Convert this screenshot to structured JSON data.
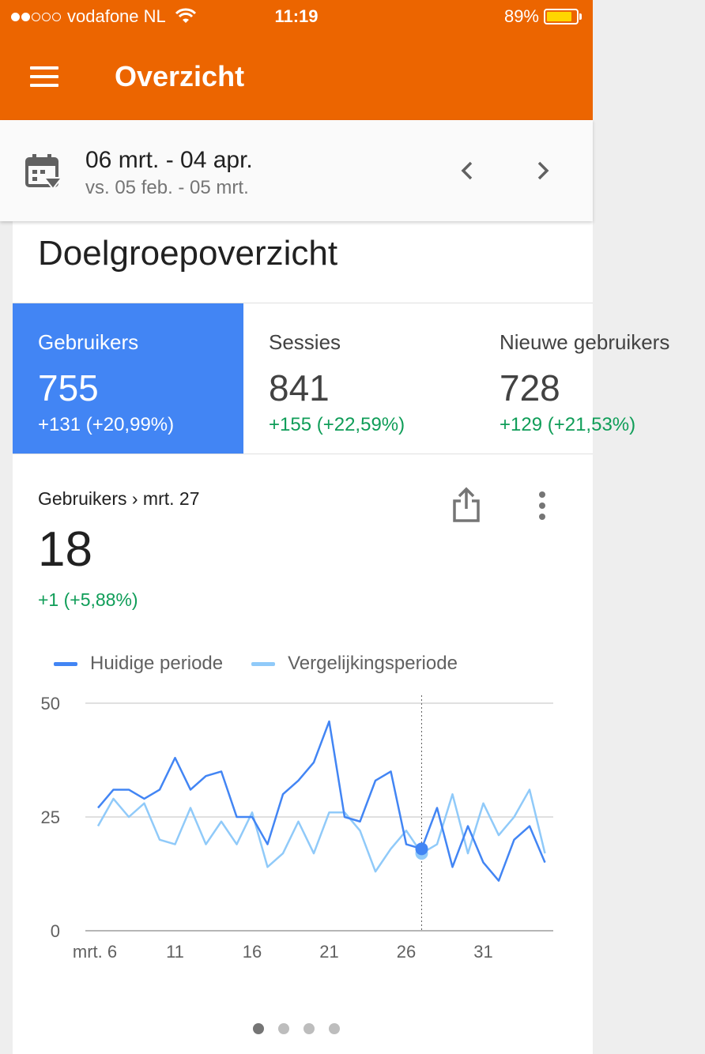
{
  "status_bar": {
    "carrier": "vodafone NL",
    "time": "11:19",
    "battery": "89%"
  },
  "app_bar": {
    "title": "Overzicht"
  },
  "date_range": {
    "primary": "06 mrt. - 04 apr.",
    "comparison": "vs. 05 feb. - 05 mrt."
  },
  "card": {
    "title": "Doelgroepoverzicht",
    "metrics": [
      {
        "label": "Gebruikers",
        "value": "755",
        "delta": "+131 (+20,99%)"
      },
      {
        "label": "Sessies",
        "value": "841",
        "delta": "+155 (+22,59%)"
      },
      {
        "label": "Nieuwe gebruikers",
        "value": "728",
        "delta": "+129 (+21,53%)"
      }
    ],
    "detail": {
      "heading": "Gebruikers › mrt. 27",
      "value": "18",
      "delta": "+1 (+5,88%)"
    },
    "colors": {
      "accent": "#4285f4",
      "positive": "#0f9d58",
      "comparison": "#90caf9",
      "appbar": "#ec6500"
    }
  },
  "chart_data": {
    "type": "line",
    "x_ticks": [
      {
        "index": 0,
        "label": "mrt. 6"
      },
      {
        "index": 5,
        "label": "11"
      },
      {
        "index": 10,
        "label": "16"
      },
      {
        "index": 15,
        "label": "21"
      },
      {
        "index": 20,
        "label": "26"
      },
      {
        "index": 25,
        "label": "31"
      }
    ],
    "y_ticks": [
      0,
      25,
      50
    ],
    "ylim": [
      0,
      50
    ],
    "highlight_index": 21,
    "series": [
      {
        "name": "Huidige periode",
        "color": "#4285f4",
        "values": [
          27,
          31,
          31,
          29,
          31,
          38,
          31,
          34,
          35,
          25,
          25,
          19,
          30,
          33,
          37,
          46,
          25,
          24,
          33,
          35,
          19,
          18,
          27,
          14,
          23,
          15,
          11,
          20,
          23,
          15
        ]
      },
      {
        "name": "Vergelijkingsperiode",
        "color": "#90caf9",
        "values": [
          23,
          29,
          25,
          28,
          20,
          19,
          27,
          19,
          24,
          19,
          26,
          14,
          17,
          24,
          17,
          26,
          26,
          22,
          13,
          18,
          22,
          17,
          19,
          30,
          17,
          28,
          21,
          25,
          31,
          17
        ]
      }
    ]
  },
  "pager": {
    "count": 4,
    "active": 0
  }
}
